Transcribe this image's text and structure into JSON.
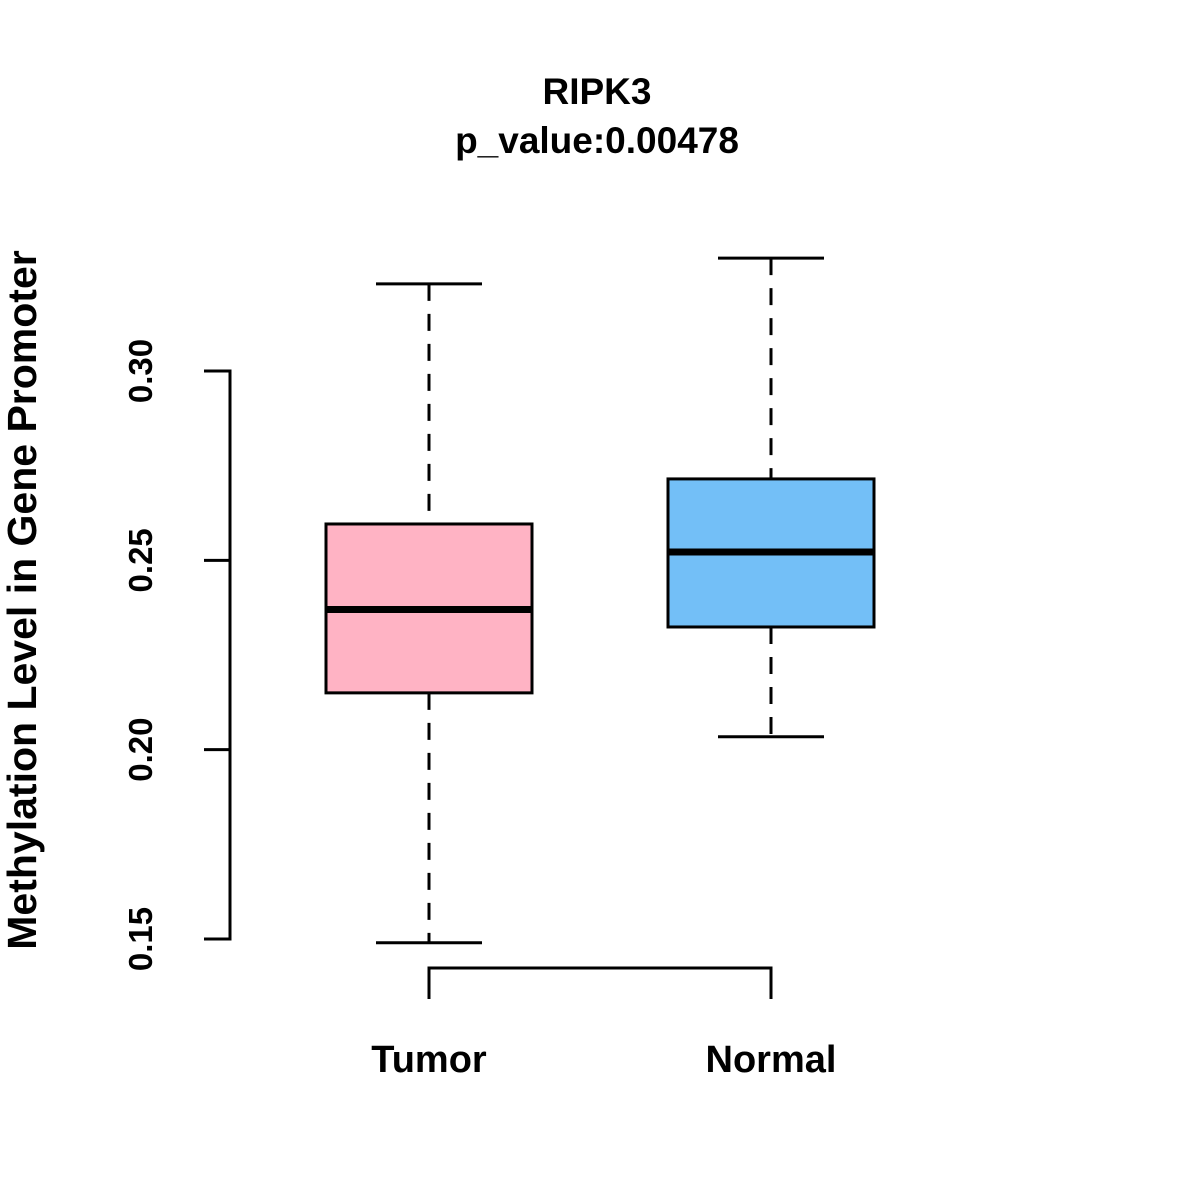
{
  "title": "RIPK3",
  "subtitle": "p_value:0.00478",
  "ylabel": "Methylation Level in Gene Promoter",
  "chart_data": {
    "type": "boxplot",
    "title": "RIPK3",
    "subtitle": "p_value:0.00478",
    "ylabel": "Methylation Level in Gene Promoter",
    "categories": [
      "Tumor",
      "Normal"
    ],
    "series": [
      {
        "name": "Tumor",
        "color": "#ffb3c4",
        "whisker_low": 0.149,
        "q1": 0.215,
        "median": 0.237,
        "q3": 0.2596,
        "whisker_high": 0.323
      },
      {
        "name": "Normal",
        "color": "#73bff7",
        "whisker_low": 0.2034,
        "q1": 0.2324,
        "median": 0.2522,
        "q3": 0.2715,
        "whisker_high": 0.3298
      }
    ],
    "yticks": [
      0.15,
      0.2,
      0.25,
      0.3
    ],
    "ytick_labels": [
      "0.15",
      "0.20",
      "0.25",
      "0.30"
    ],
    "ylim": [
      0.149,
      0.33
    ],
    "grid": false,
    "legend": "none",
    "axis_color": "#000000",
    "median_color": "#000000",
    "whisker_style": "dashed"
  }
}
